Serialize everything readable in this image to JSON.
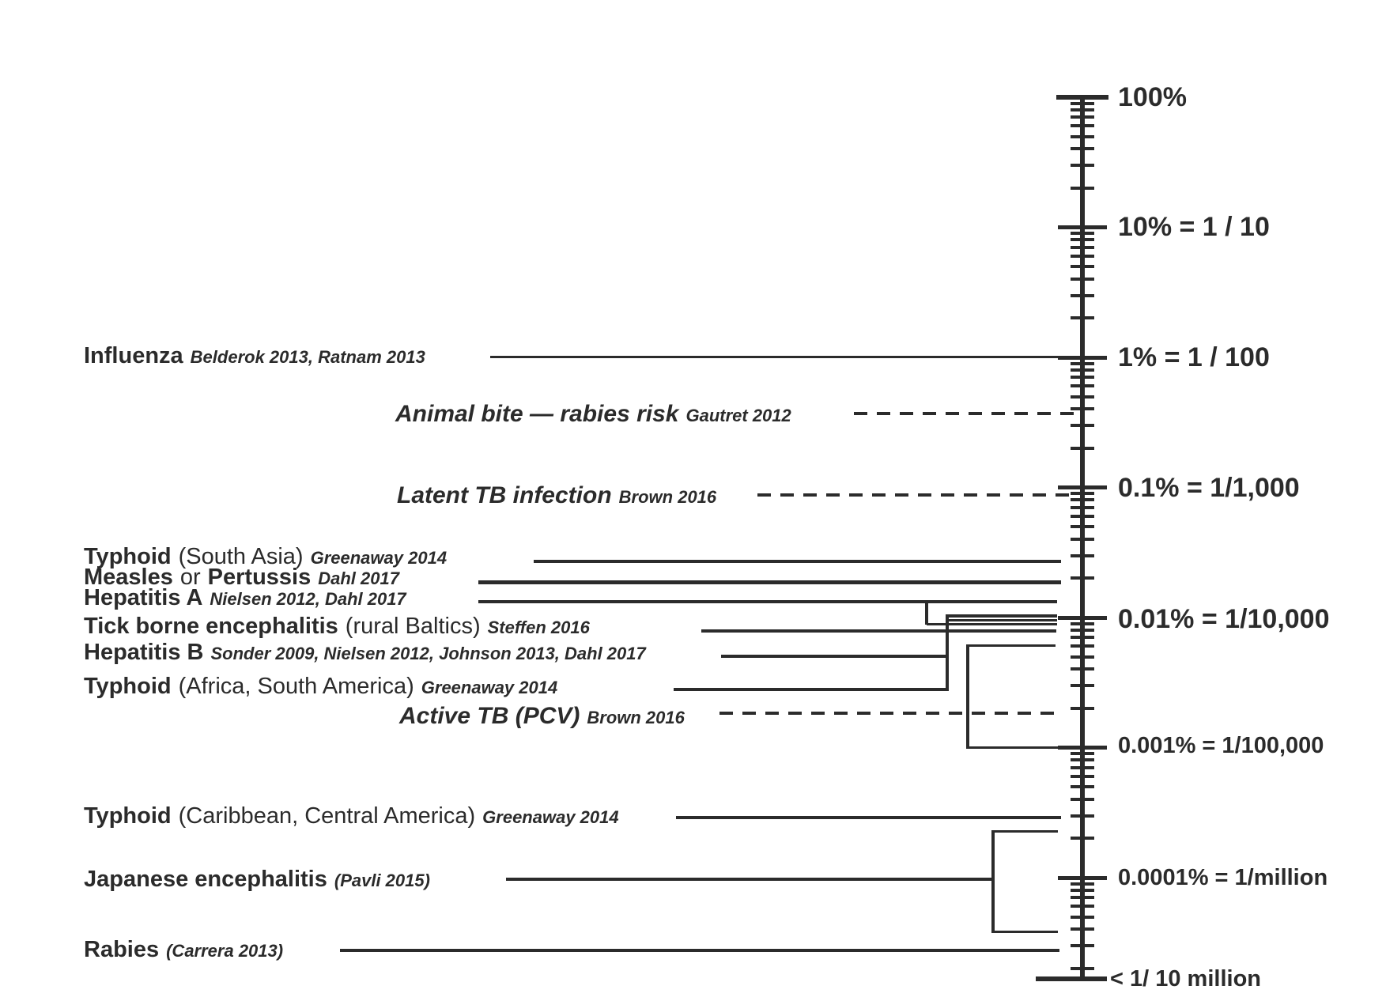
{
  "figure": {
    "background": "#ffffff",
    "ink_color": "#2b2b2b",
    "description": "Logarithmic risk ladder of travel-related infection risks, pointer lines from disease labels to a vertical log scale"
  },
  "scale": {
    "labels": [
      "100%",
      "10% = 1 / 10",
      "1% = 1 / 100",
      "0.1% = 1/1,000",
      "0.01% = 1/10,000",
      "0.001% = 1/100,000",
      "0.0001% = 1/million",
      "< 1/ 10 million"
    ]
  },
  "diseases": [
    {
      "name": "Influenza",
      "citation": "Belderok 2013, Ratnam 2013"
    },
    {
      "name": "Animal bite — rabies risk",
      "citation": "Gautret 2012"
    },
    {
      "name": "Latent TB infection",
      "citation": "Brown 2016"
    },
    {
      "name": "Typhoid",
      "tail": "(South Asia)",
      "citation": "Greenaway 2014"
    },
    {
      "name": "Measles",
      "tail": "or",
      "name2": "Pertussis",
      "citation": "Dahl 2017"
    },
    {
      "name": "Hepatitis A",
      "citation": "Nielsen 2012, Dahl 2017"
    },
    {
      "name": "Tick borne encephalitis",
      "tail": "(rural Baltics)",
      "citation": "Steffen 2016"
    },
    {
      "name": "Hepatitis B",
      "citation": "Sonder 2009, Nielsen 2012, Johnson 2013, Dahl 2017"
    },
    {
      "name": "Typhoid",
      "tail": "(Africa, South America)",
      "citation": "Greenaway 2014"
    },
    {
      "name": "Active TB (PCV)",
      "citation": "Brown 2016"
    },
    {
      "name": "Typhoid",
      "tail": "(Caribbean, Central America)",
      "citation": "Greenaway 2014"
    },
    {
      "name": "Japanese encephalitis",
      "citation": "(Pavli 2015)"
    },
    {
      "name": "Rabies",
      "citation": "(Carrera 2013)"
    }
  ],
  "chart_data": {
    "type": "log_scale_risk_ladder",
    "orientation": "vertical",
    "title": "",
    "axis": {
      "scale": "log10",
      "tick_labels": [
        "100%",
        "10% = 1 / 10",
        "1% = 1 / 100",
        "0.1% = 1/1,000",
        "0.01% = 1/10,000",
        "0.001% = 1/100,000",
        "0.0001% = 1/million",
        "< 1/ 10 million"
      ],
      "tick_values_percent": [
        100,
        10,
        1,
        0.1,
        0.01,
        0.001,
        0.0001,
        1e-05
      ],
      "minor_ticks": "log-spaced at 9,8,7,6,5,4,3,2 within each decade",
      "range_percent": [
        100,
        1e-05
      ],
      "legend_position": "none",
      "grid": false
    },
    "items": [
      {
        "name": "Influenza",
        "citation": "Belderok 2013, Ratnam 2013",
        "line_style": "solid",
        "pointer": "direct",
        "approx_risk_percent": 1.0,
        "approx_risk_fraction": "1/100"
      },
      {
        "name": "Animal bite — rabies risk",
        "citation": "Gautret 2012",
        "line_style": "dashed",
        "pointer": "direct",
        "approx_risk_percent": 0.36,
        "approx_risk_fraction": "~1/280"
      },
      {
        "name": "Latent TB infection",
        "citation": "Brown 2016",
        "line_style": "dashed",
        "pointer": "direct",
        "approx_risk_percent": 0.1,
        "approx_risk_fraction": "~1/1,000"
      },
      {
        "name": "Typhoid (South Asia)",
        "citation": "Greenaway 2014",
        "line_style": "solid",
        "pointer": "direct",
        "approx_risk_percent": 0.027,
        "approx_risk_fraction": "~1/3,700"
      },
      {
        "name": "Measles or Pertussis",
        "citation": "Dahl 2017",
        "line_style": "solid",
        "pointer": "direct",
        "approx_risk_percent": 0.019,
        "approx_risk_fraction": "~1/5,300"
      },
      {
        "name": "Hepatitis A",
        "citation": "Nielsen 2012, Dahl 2017",
        "line_style": "solid",
        "pointer": "steps-down-to-0.01%-cluster",
        "approx_risk_percent": 0.01,
        "approx_risk_fraction": "~1/10,000"
      },
      {
        "name": "Tick borne encephalitis (rural Baltics)",
        "citation": "Steffen 2016",
        "line_style": "solid",
        "pointer": "direct",
        "approx_risk_percent": 0.008,
        "approx_risk_fraction": "~1/12,500"
      },
      {
        "name": "Hepatitis B",
        "citation": "Sonder 2009, Nielsen 2012, Johnson 2013, Dahl 2017",
        "line_style": "solid",
        "pointer": "bracket-near-0.01%",
        "approx_risk_percent": 0.005,
        "approx_risk_fraction": "~1/20,000"
      },
      {
        "name": "Typhoid (Africa, South America)",
        "citation": "Greenaway 2014",
        "line_style": "solid",
        "pointer": "bracket-near-0.01%",
        "approx_risk_percent": 0.0028,
        "approx_risk_fraction": "~1/36,000"
      },
      {
        "name": "Active TB (PCV)",
        "citation": "Brown 2016",
        "line_style": "dashed",
        "pointer": "direct",
        "approx_risk_percent": 0.0018,
        "approx_risk_fraction": "~1/55,000"
      },
      {
        "name": "Typhoid (Caribbean, Central America)",
        "citation": "Greenaway 2014",
        "line_style": "solid",
        "pointer": "direct",
        "approx_risk_percent": 0.0003,
        "approx_risk_fraction": "~1/340,000"
      },
      {
        "name": "Japanese encephalitis",
        "citation": "Pavli 2015",
        "line_style": "solid",
        "pointer": "range-bracket-around-1/million",
        "approx_risk_percent": 0.0001,
        "approx_risk_fraction": "~1/1,000,000"
      },
      {
        "name": "Rabies",
        "citation": "Carrera 2013",
        "line_style": "solid",
        "pointer": "direct",
        "approx_risk_percent": 2.7e-05,
        "approx_risk_fraction": "~1/3,700,000"
      }
    ]
  }
}
